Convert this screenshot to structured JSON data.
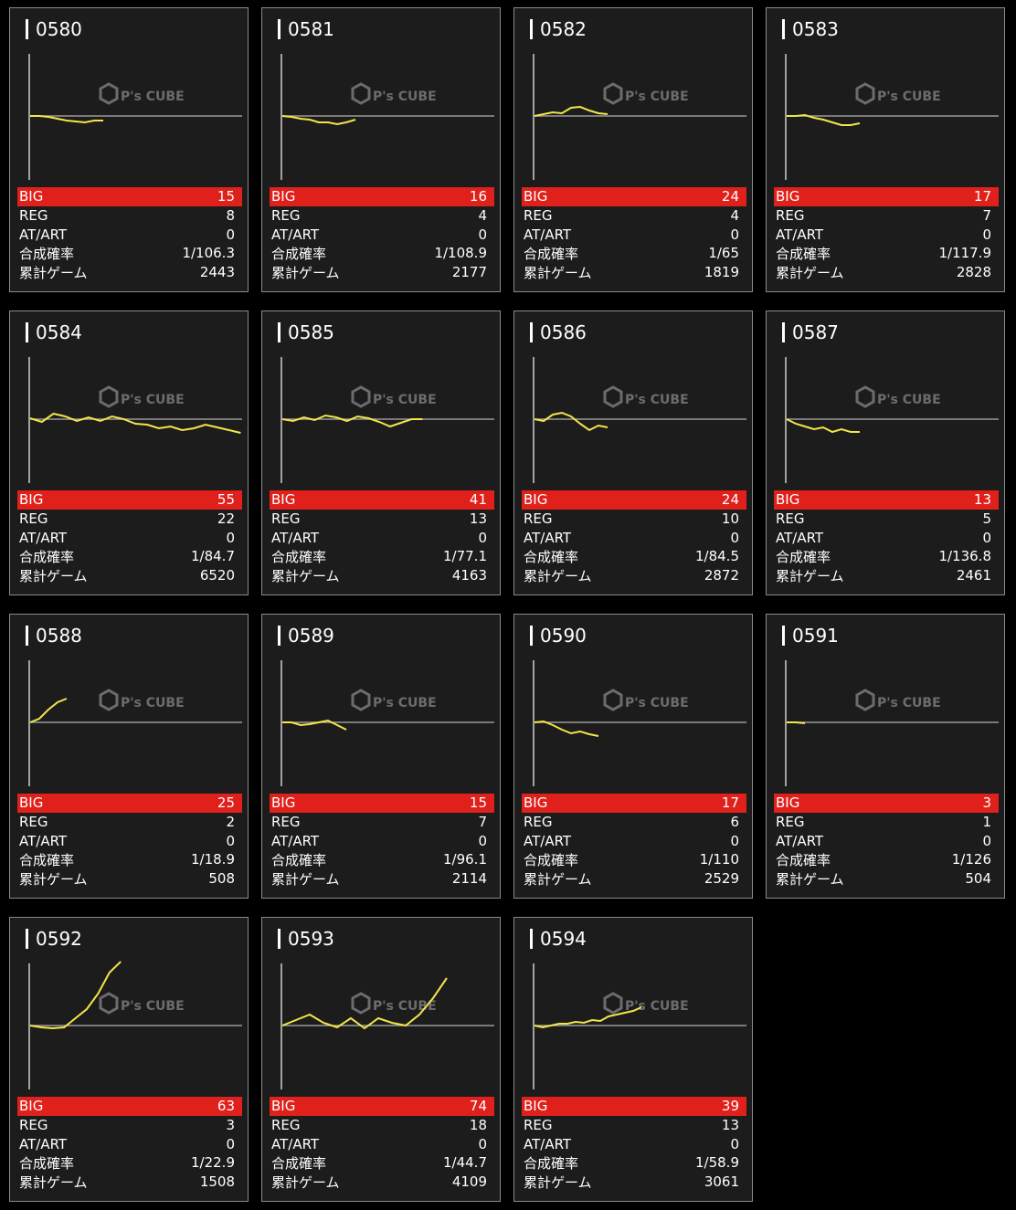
{
  "labels": {
    "big": "BIG",
    "reg": "REG",
    "at_art": "AT/ART",
    "combined": "合成確率",
    "total_games": "累計ゲーム"
  },
  "watermark": {
    "text": "P's CUBE"
  },
  "colors": {
    "big_row": "#e0201b",
    "line": "#f2e64a",
    "baseline": "#9a9a9a",
    "card_bg": "#1c1c1c"
  },
  "machines": [
    {
      "no": "0580",
      "big": "15",
      "reg": "8",
      "at_art": "0",
      "combined": "1/106.3",
      "total": "2443",
      "graph": [
        0,
        0,
        -1,
        -3,
        -5,
        -6,
        -7,
        -5,
        -5
      ]
    },
    {
      "no": "0581",
      "big": "16",
      "reg": "4",
      "at_art": "0",
      "combined": "1/108.9",
      "total": "2177",
      "graph": [
        0,
        -1,
        -3,
        -4,
        -7,
        -7,
        -9,
        -7,
        -4
      ]
    },
    {
      "no": "0582",
      "big": "24",
      "reg": "4",
      "at_art": "0",
      "combined": "1/65",
      "total": "1819",
      "graph": [
        0,
        2,
        4,
        3,
        9,
        10,
        6,
        3,
        2
      ]
    },
    {
      "no": "0583",
      "big": "17",
      "reg": "7",
      "at_art": "0",
      "combined": "1/117.9",
      "total": "2828",
      "graph": [
        0,
        0,
        1,
        -2,
        -4,
        -7,
        -10,
        -10,
        -8
      ]
    },
    {
      "no": "0584",
      "big": "55",
      "reg": "22",
      "at_art": "0",
      "combined": "1/84.7",
      "total": "6520",
      "graph": [
        1,
        -3,
        6,
        3,
        -2,
        2,
        -2,
        3,
        0,
        -5,
        -6,
        -10,
        -8,
        -12,
        -10,
        -6,
        -9,
        -12,
        -15
      ]
    },
    {
      "no": "0585",
      "big": "41",
      "reg": "13",
      "at_art": "0",
      "combined": "1/77.1",
      "total": "4163",
      "graph": [
        0,
        -2,
        2,
        -1,
        4,
        2,
        -2,
        3,
        1,
        -3,
        -8,
        -4,
        0,
        0
      ]
    },
    {
      "no": "0586",
      "big": "24",
      "reg": "10",
      "at_art": "0",
      "combined": "1/84.5",
      "total": "2872",
      "graph": [
        0,
        -2,
        5,
        7,
        3,
        -5,
        -12,
        -7,
        -9
      ]
    },
    {
      "no": "0587",
      "big": "13",
      "reg": "5",
      "at_art": "0",
      "combined": "1/136.8",
      "total": "2461",
      "graph": [
        0,
        -5,
        -8,
        -11,
        -9,
        -14,
        -11,
        -14,
        -14
      ]
    },
    {
      "no": "0588",
      "big": "25",
      "reg": "2",
      "at_art": "0",
      "combined": "1/18.9",
      "total": "508",
      "graph": [
        0,
        4,
        14,
        22,
        26
      ]
    },
    {
      "no": "0589",
      "big": "15",
      "reg": "7",
      "at_art": "0",
      "combined": "1/96.1",
      "total": "2114",
      "graph": [
        0,
        0,
        -3,
        -2,
        0,
        2,
        -3,
        -8
      ]
    },
    {
      "no": "0590",
      "big": "17",
      "reg": "6",
      "at_art": "0",
      "combined": "1/110",
      "total": "2529",
      "graph": [
        0,
        1,
        -3,
        -8,
        -12,
        -10,
        -13,
        -15
      ]
    },
    {
      "no": "0591",
      "big": "3",
      "reg": "1",
      "at_art": "0",
      "combined": "1/126",
      "total": "504",
      "graph": [
        0,
        0,
        -1
      ]
    },
    {
      "no": "0592",
      "big": "63",
      "reg": "3",
      "at_art": "0",
      "combined": "1/22.9",
      "total": "1508",
      "graph": [
        0,
        -2,
        -3,
        -2,
        8,
        18,
        35,
        58,
        70
      ]
    },
    {
      "no": "0593",
      "big": "74",
      "reg": "18",
      "at_art": "0",
      "combined": "1/44.7",
      "total": "4109",
      "graph": [
        0,
        6,
        12,
        3,
        -2,
        8,
        -3,
        8,
        3,
        0,
        12,
        30,
        52
      ]
    },
    {
      "no": "0594",
      "big": "39",
      "reg": "13",
      "at_art": "0",
      "combined": "1/58.9",
      "total": "3061",
      "graph": [
        0,
        -2,
        0,
        2,
        2,
        4,
        3,
        6,
        5,
        10,
        12,
        14,
        16,
        20
      ]
    }
  ]
}
